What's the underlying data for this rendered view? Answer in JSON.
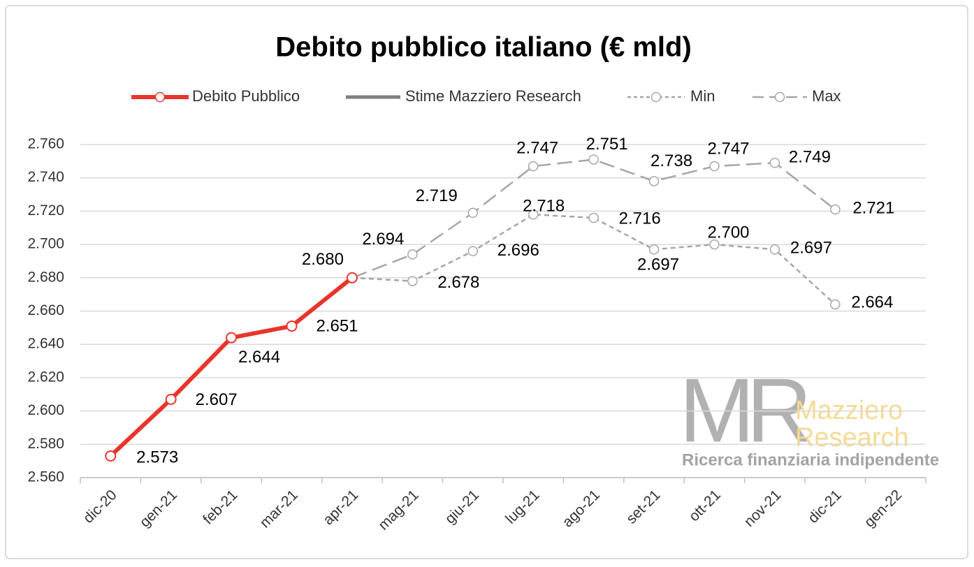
{
  "chart_data": {
    "type": "line",
    "title": "Debito pubblico italiano (€ mld)",
    "categories": [
      "dic-20",
      "gen-21",
      "feb-21",
      "mar-21",
      "apr-21",
      "mag-21",
      "giu-21",
      "lug-21",
      "ago-21",
      "set-21",
      "ott-21",
      "nov-21",
      "dic-21",
      "gen-22"
    ],
    "series": [
      {
        "name": "Debito Pubblico",
        "color": "#e8352b",
        "values": [
          2573,
          2607,
          2644,
          2651,
          2680,
          null,
          null,
          null,
          null,
          null,
          null,
          null,
          null,
          null
        ],
        "value_labels": [
          "2.573",
          "2.607",
          "2.644",
          "2.651",
          "2.680",
          null,
          null,
          null,
          null,
          null,
          null,
          null,
          null,
          null
        ]
      },
      {
        "name": "Stime Mazziero Research",
        "color": "#7f7f7f",
        "values": [
          null,
          null,
          null,
          null,
          null,
          null,
          null,
          null,
          null,
          null,
          null,
          null,
          null,
          null
        ],
        "value_labels": [
          null,
          null,
          null,
          null,
          null,
          null,
          null,
          null,
          null,
          null,
          null,
          null,
          null,
          null
        ]
      },
      {
        "name": "Min",
        "color": "#a6a6a6",
        "values": [
          null,
          null,
          null,
          null,
          2680,
          2678,
          2696,
          2718,
          2716,
          2697,
          2700,
          2697,
          2664,
          null
        ],
        "value_labels": [
          null,
          null,
          null,
          null,
          null,
          "2.678",
          "2.696",
          "2.718",
          "2.716",
          "2.697",
          "2.700",
          "2.697",
          "2.664",
          null
        ]
      },
      {
        "name": "Max",
        "color": "#a6a6a6",
        "values": [
          null,
          null,
          null,
          null,
          2680,
          2694,
          2719,
          2747,
          2751,
          2738,
          2747,
          2749,
          2721,
          null
        ],
        "value_labels": [
          null,
          null,
          null,
          null,
          null,
          "2.694",
          "2.719",
          "2.747",
          "2.751",
          "2.738",
          "2.747",
          "2.749",
          "2.721",
          null
        ]
      }
    ],
    "ylim": [
      2560,
      2760
    ],
    "yticks": [
      {
        "value": 2560,
        "label": "2.560"
      },
      {
        "value": 2580,
        "label": "2.580"
      },
      {
        "value": 2600,
        "label": "2.600"
      },
      {
        "value": 2620,
        "label": "2.620"
      },
      {
        "value": 2640,
        "label": "2.640"
      },
      {
        "value": 2660,
        "label": "2.660"
      },
      {
        "value": 2680,
        "label": "2.680"
      },
      {
        "value": 2700,
        "label": "2.700"
      },
      {
        "value": 2720,
        "label": "2.720"
      },
      {
        "value": 2740,
        "label": "2.740"
      },
      {
        "value": 2760,
        "label": "2.760"
      }
    ],
    "grid": true,
    "legend": "top",
    "watermark": {
      "logo": "MR",
      "name_1": "Mazziero",
      "name_2": "Research",
      "tagline": "Ricerca finanziaria indipendente"
    }
  }
}
